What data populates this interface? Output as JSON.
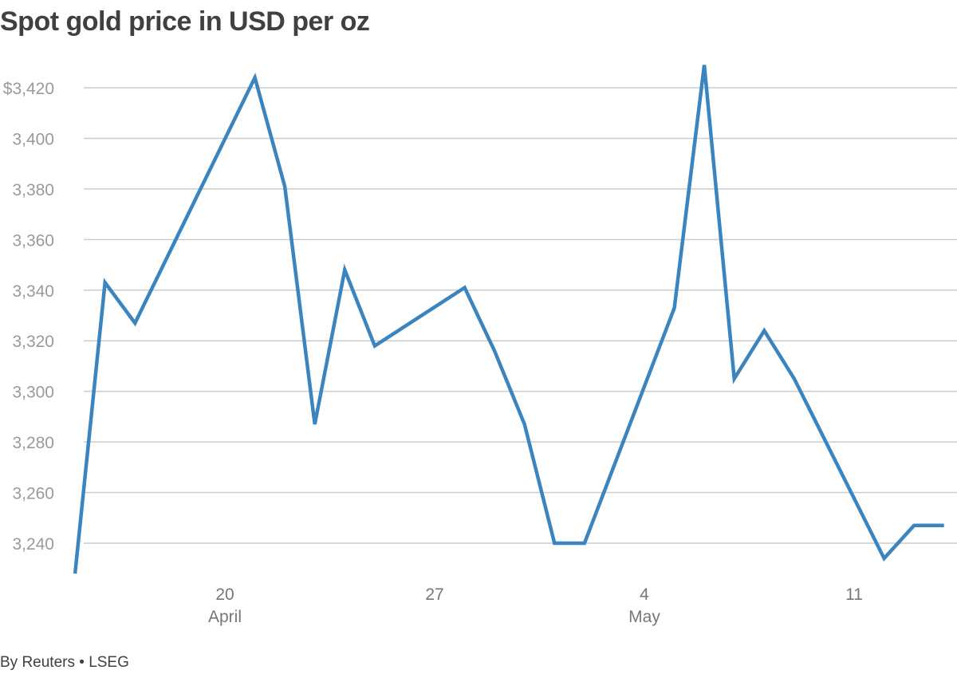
{
  "chart_data": {
    "type": "line",
    "title": "Spot gold price in USD per oz",
    "source": "By Reuters • LSEG",
    "xlabel": "",
    "ylabel": "",
    "ylim": [
      3220,
      3435
    ],
    "y_ticks": [
      3240,
      3260,
      3280,
      3300,
      3320,
      3340,
      3360,
      3380,
      3400,
      3420
    ],
    "y_tick_labels": [
      "3,240",
      "3,260",
      "3,280",
      "3,300",
      "3,320",
      "3,340",
      "3,360",
      "3,380",
      "3,400",
      "$3,420"
    ],
    "x_ticks": [
      {
        "date": "2025-04-20",
        "label": "20",
        "sublabel": "April"
      },
      {
        "date": "2025-04-27",
        "label": "27",
        "sublabel": ""
      },
      {
        "date": "2025-05-04",
        "label": "4",
        "sublabel": "May"
      },
      {
        "date": "2025-05-11",
        "label": "11",
        "sublabel": ""
      }
    ],
    "grid": true,
    "line_color": "#3a85c0",
    "grid_color": "#cccccc",
    "series": [
      {
        "name": "",
        "x": [
          "2025-04-15",
          "2025-04-16",
          "2025-04-17",
          "2025-04-21",
          "2025-04-22",
          "2025-04-23",
          "2025-04-24",
          "2025-04-25",
          "2025-04-28",
          "2025-04-29",
          "2025-04-30",
          "2025-05-01",
          "2025-05-02",
          "2025-05-05",
          "2025-05-06",
          "2025-05-07",
          "2025-05-08",
          "2025-05-09",
          "2025-05-12",
          "2025-05-13",
          "2025-05-14"
        ],
        "values": [
          3228,
          3343,
          3327,
          3424,
          3381,
          3287,
          3348,
          3318,
          3341,
          3316,
          3287,
          3240,
          3240,
          3333,
          3429,
          3305,
          3324,
          3305,
          3234,
          3247,
          3247
        ]
      }
    ]
  }
}
